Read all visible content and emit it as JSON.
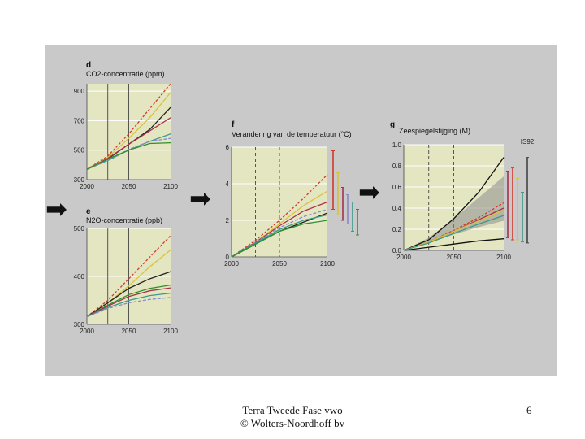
{
  "footer": {
    "line1": "Terra Tweede Fase vwo",
    "line2": "© Wolters-Noordhoff bv",
    "page_number": "6"
  },
  "colors": {
    "plot_bg": "#e4e6c2",
    "scan_bg": "#c9c9c9",
    "grid": "#ffffff"
  },
  "chart_data": [
    {
      "id": "d",
      "type": "line",
      "label": "d",
      "title": "CO2-concentratie (ppm)",
      "x": [
        2000,
        2025,
        2050,
        2075,
        2100
      ],
      "xticks": [
        "2000",
        "2050",
        "2100"
      ],
      "yticks": [
        "300",
        "500",
        "700",
        "900"
      ],
      "ylim": [
        300,
        950
      ],
      "series": [
        {
          "name": "s1",
          "color": "#d33a2c",
          "dash": "3,2",
          "values": [
            370,
            460,
            610,
            780,
            950
          ]
        },
        {
          "name": "s2",
          "color": "#d8c23c",
          "dash": "",
          "values": [
            370,
            450,
            580,
            720,
            890
          ]
        },
        {
          "name": "s3",
          "color": "#222222",
          "dash": "",
          "values": [
            370,
            440,
            540,
            640,
            790
          ]
        },
        {
          "name": "s4",
          "color": "#a8324a",
          "dash": "",
          "values": [
            370,
            445,
            540,
            630,
            720
          ]
        },
        {
          "name": "s5",
          "color": "#3a9a8a",
          "dash": "",
          "values": [
            370,
            430,
            500,
            560,
            610
          ]
        },
        {
          "name": "s6",
          "color": "#8888cc",
          "dash": "4,2",
          "values": [
            370,
            430,
            505,
            560,
            580
          ]
        },
        {
          "name": "s7",
          "color": "#2f8f2f",
          "dash": "",
          "values": [
            370,
            440,
            500,
            545,
            550
          ]
        }
      ]
    },
    {
      "id": "e",
      "type": "line",
      "label": "e",
      "title": "N2O-concentratie (ppb)",
      "x": [
        2000,
        2025,
        2050,
        2075,
        2100
      ],
      "xticks": [
        "2000",
        "2050",
        "2100"
      ],
      "yticks": [
        "300",
        "400",
        "500"
      ],
      "ylim": [
        300,
        500
      ],
      "series": [
        {
          "name": "s1",
          "color": "#d33a2c",
          "dash": "3,2",
          "values": [
            316,
            350,
            395,
            440,
            485
          ]
        },
        {
          "name": "s2",
          "color": "#d8c23c",
          "dash": "",
          "values": [
            316,
            345,
            380,
            420,
            455
          ]
        },
        {
          "name": "s3",
          "color": "#222222",
          "dash": "",
          "values": [
            316,
            345,
            375,
            395,
            410
          ]
        },
        {
          "name": "s4",
          "color": "#2f8f2f",
          "dash": "",
          "values": [
            316,
            340,
            362,
            375,
            382
          ]
        },
        {
          "name": "s5",
          "color": "#a8324a",
          "dash": "",
          "values": [
            316,
            338,
            358,
            370,
            376
          ]
        },
        {
          "name": "s6",
          "color": "#3a9a8a",
          "dash": "",
          "values": [
            316,
            335,
            350,
            360,
            365
          ]
        },
        {
          "name": "s7",
          "color": "#8888cc",
          "dash": "4,2",
          "values": [
            316,
            333,
            345,
            352,
            356
          ]
        }
      ]
    },
    {
      "id": "f",
      "type": "line",
      "label": "f",
      "title": "Verandering van de temperatuur (°C)",
      "x": [
        2000,
        2025,
        2050,
        2075,
        2100
      ],
      "xticks": [
        "2000",
        "2050",
        "2100"
      ],
      "yticks": [
        "0",
        "2",
        "4",
        "6"
      ],
      "ylim": [
        0,
        6
      ],
      "series": [
        {
          "name": "s1",
          "color": "#d33a2c",
          "dash": "3,2",
          "values": [
            0,
            0.9,
            2.0,
            3.2,
            4.5
          ]
        },
        {
          "name": "s2",
          "color": "#d8c23c",
          "dash": "",
          "values": [
            0,
            0.8,
            1.8,
            2.8,
            3.6
          ]
        },
        {
          "name": "s3",
          "color": "#a8324a",
          "dash": "",
          "values": [
            0,
            0.8,
            1.7,
            2.5,
            3.0
          ]
        },
        {
          "name": "s4",
          "color": "#8888cc",
          "dash": "4,2",
          "values": [
            0,
            0.8,
            1.6,
            2.2,
            2.6
          ]
        },
        {
          "name": "s5",
          "color": "#222222",
          "dash": "",
          "values": [
            0,
            0.7,
            1.4,
            1.9,
            2.4
          ]
        },
        {
          "name": "s6",
          "color": "#3a9a8a",
          "dash": "",
          "values": [
            0,
            0.75,
            1.5,
            2.0,
            2.3
          ]
        },
        {
          "name": "s7",
          "color": "#2f8f2f",
          "dash": "",
          "values": [
            0,
            0.7,
            1.4,
            1.8,
            2.0
          ]
        }
      ],
      "ranges": [
        {
          "color": "#d33a2c",
          "lo": 2.6,
          "hi": 5.8
        },
        {
          "color": "#d8c23c",
          "lo": 2.3,
          "hi": 4.6
        },
        {
          "color": "#a8324a",
          "lo": 2.0,
          "hi": 3.8
        },
        {
          "color": "#8888cc",
          "lo": 1.8,
          "hi": 3.4
        },
        {
          "color": "#3a9a8a",
          "lo": 1.4,
          "hi": 3.0
        },
        {
          "color": "#2f8f2f",
          "lo": 1.2,
          "hi": 2.6
        }
      ]
    },
    {
      "id": "g",
      "type": "line",
      "label": "g",
      "title": "Zeespiegelstijging (M)",
      "x": [
        2000,
        2025,
        2050,
        2075,
        2100
      ],
      "xticks": [
        "2000",
        "2050",
        "2100"
      ],
      "yticks": [
        "0.0",
        "0.2",
        "0.4",
        "0.6",
        "0.8",
        "1.0"
      ],
      "ylim": [
        0,
        1.0
      ],
      "band": {
        "lower": [
          0,
          0.07,
          0.15,
          0.22,
          0.28
        ],
        "upper": [
          0,
          0.12,
          0.3,
          0.5,
          0.7
        ],
        "color": "#8c8c8c"
      },
      "series": [
        {
          "name": "upper",
          "color": "#111111",
          "dash": "",
          "values": [
            0,
            0.1,
            0.3,
            0.55,
            0.88
          ]
        },
        {
          "name": "lower",
          "color": "#111111",
          "dash": "",
          "values": [
            0,
            0.03,
            0.06,
            0.09,
            0.11
          ]
        },
        {
          "name": "s1",
          "color": "#d33a2c",
          "dash": "3,2",
          "values": [
            0,
            0.08,
            0.19,
            0.31,
            0.45
          ]
        },
        {
          "name": "s2",
          "color": "#a8324a",
          "dash": "",
          "values": [
            0,
            0.08,
            0.18,
            0.29,
            0.4
          ]
        },
        {
          "name": "s3",
          "color": "#d8c23c",
          "dash": "",
          "values": [
            0,
            0.08,
            0.18,
            0.28,
            0.38
          ]
        },
        {
          "name": "s4",
          "color": "#3a9a8a",
          "dash": "",
          "values": [
            0,
            0.07,
            0.16,
            0.25,
            0.33
          ]
        }
      ],
      "ranges": [
        {
          "color": "#a8324a",
          "lo": 0.12,
          "hi": 0.75
        },
        {
          "color": "#d33a2c",
          "lo": 0.1,
          "hi": 0.78
        },
        {
          "color": "#d8c23c",
          "lo": 0.1,
          "hi": 0.68
        },
        {
          "color": "#3a9a8a",
          "lo": 0.08,
          "hi": 0.55
        },
        {
          "color": "#444444",
          "lo": 0.07,
          "hi": 0.88
        }
      ],
      "range_label": "IS92"
    }
  ]
}
